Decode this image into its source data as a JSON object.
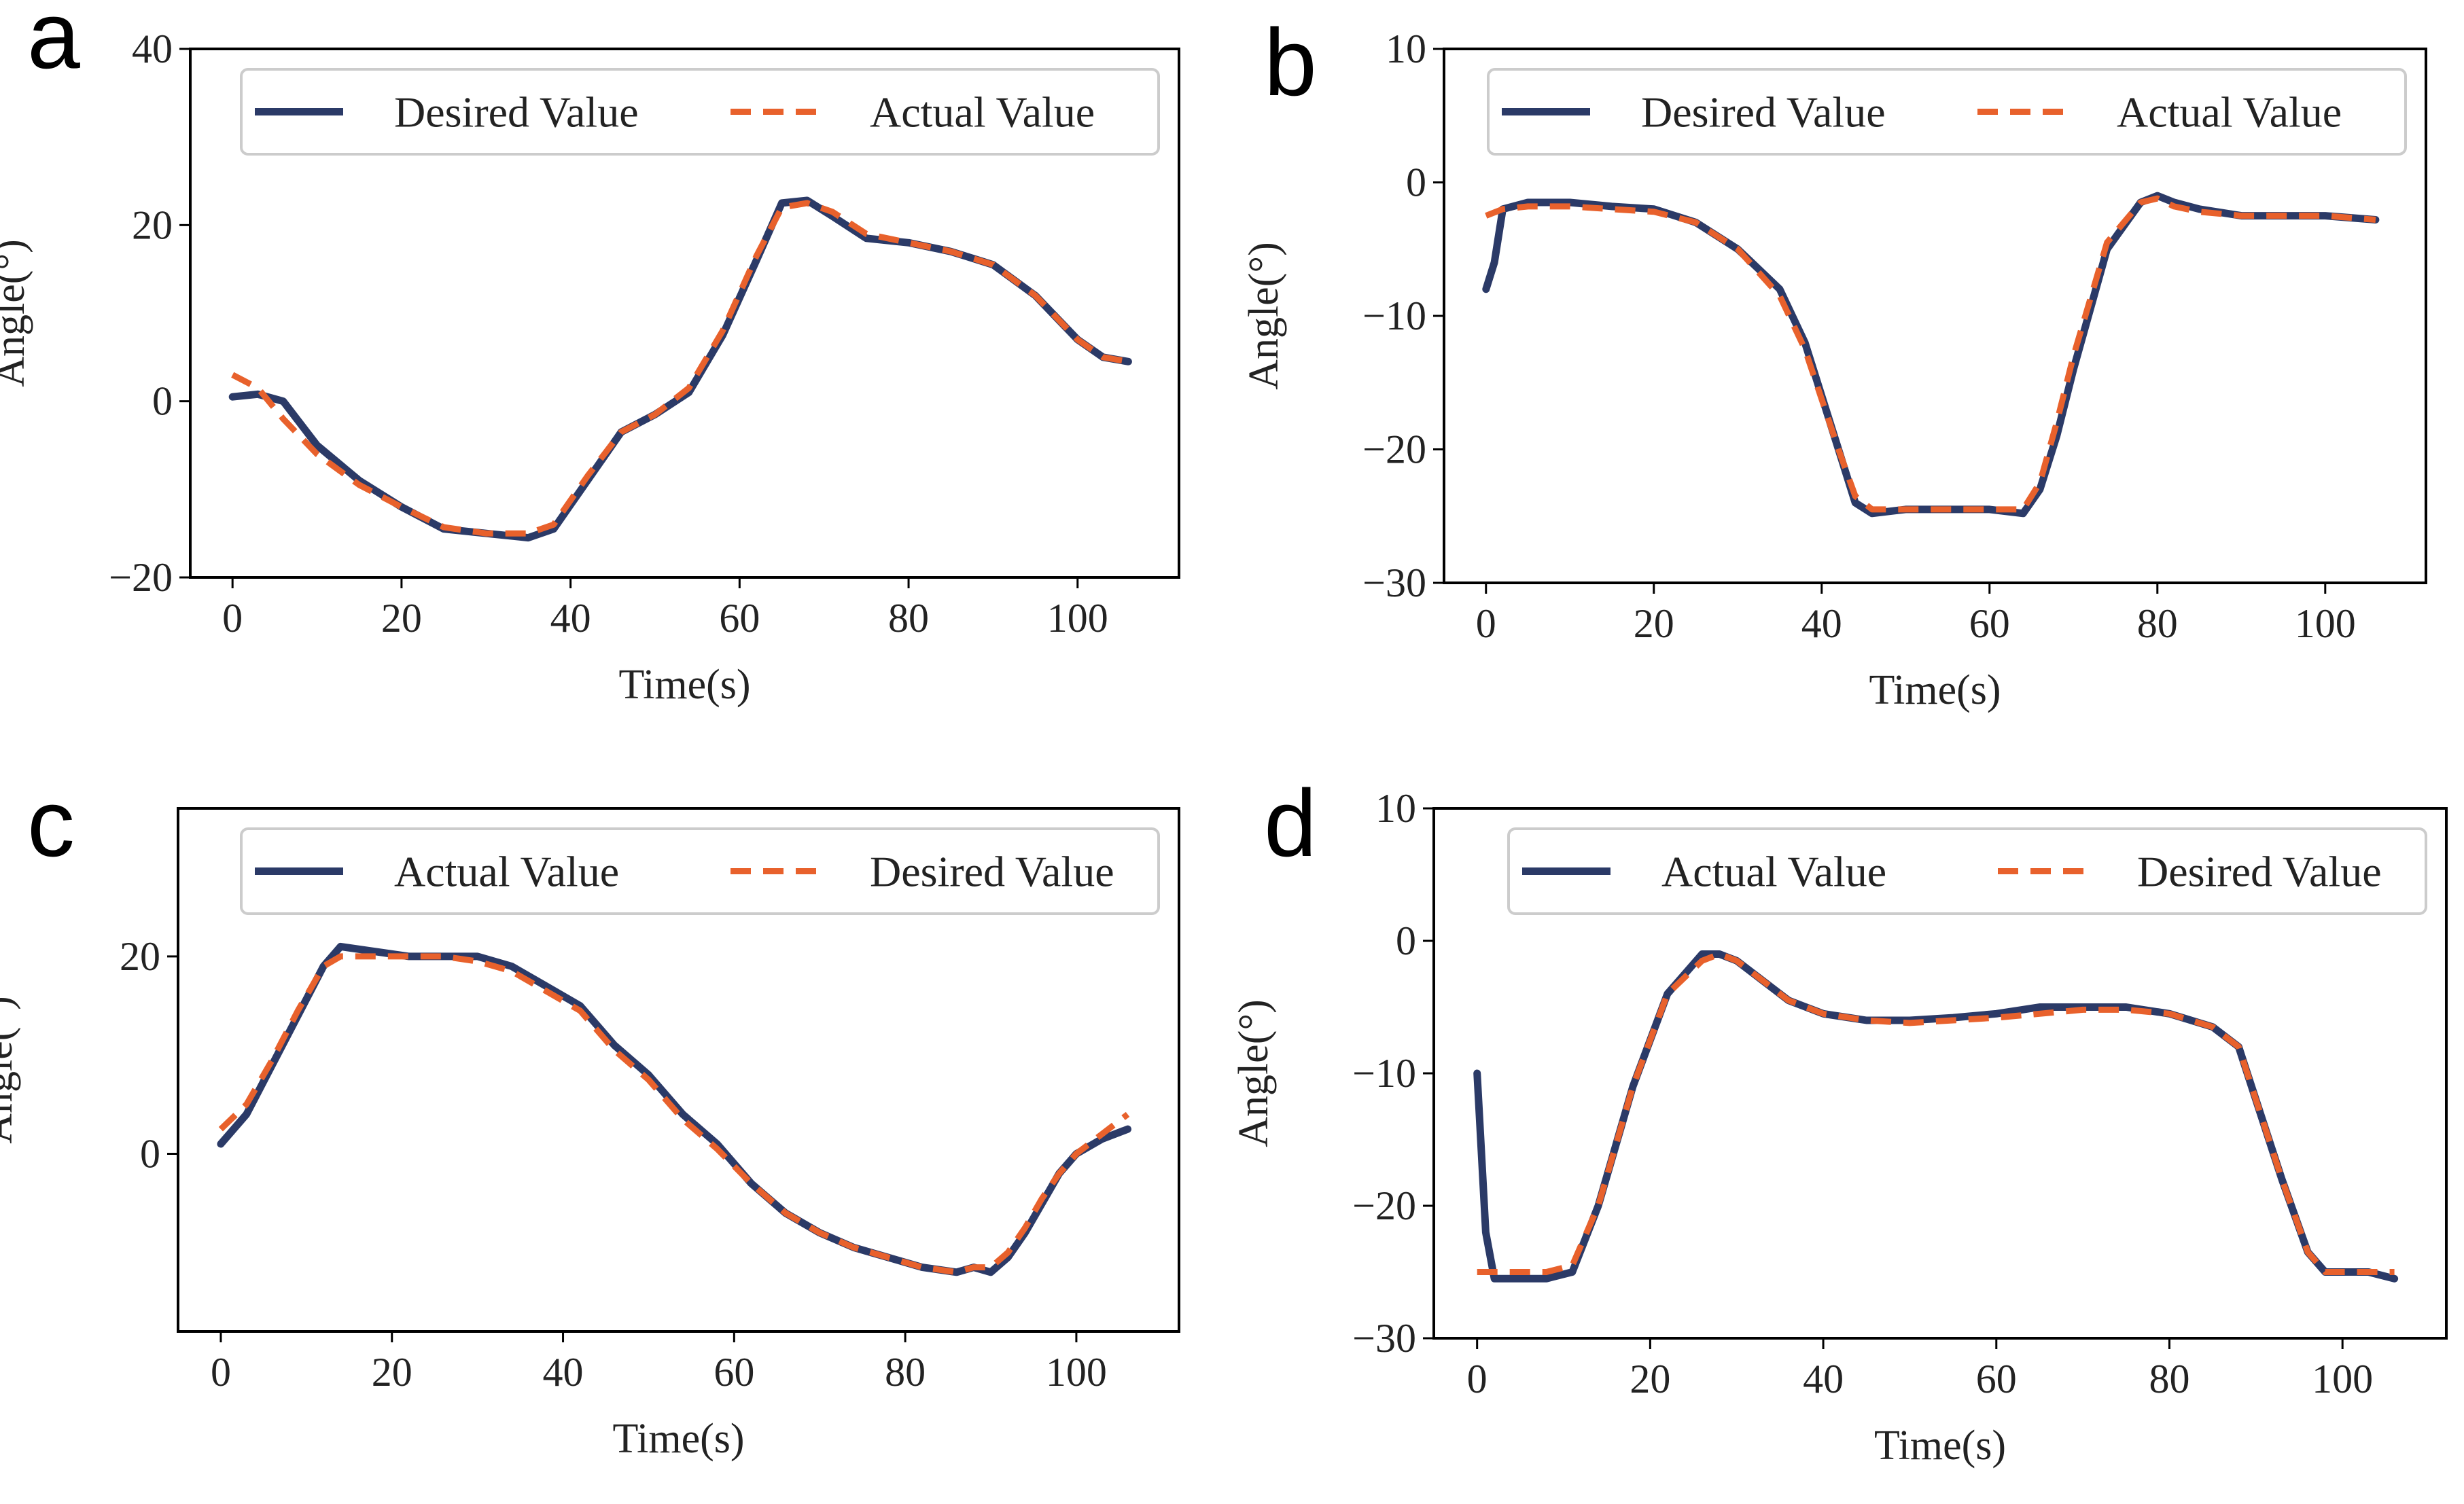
{
  "colors": {
    "navy": "#2b3a67",
    "orange": "#e8612c"
  },
  "chart_data": [
    {
      "panel": "a",
      "type": "line",
      "xlabel": "Time(s)",
      "ylabel": "Angle(°)",
      "xlim": [
        -5,
        112
      ],
      "ylim": [
        -20,
        40
      ],
      "xticks": [
        0,
        20,
        40,
        60,
        80,
        100
      ],
      "yticks": [
        -20,
        0,
        20,
        40
      ],
      "legend": [
        "Desired Value",
        "Actual Value"
      ],
      "legend_position": "top-right",
      "series": [
        {
          "name": "Desired Value",
          "style": "solid",
          "color": "#2b3a67",
          "x": [
            0,
            3,
            6,
            10,
            15,
            20,
            25,
            30,
            35,
            38,
            42,
            46,
            50,
            54,
            58,
            62,
            65,
            68,
            71,
            75,
            80,
            85,
            90,
            95,
            100,
            103,
            106
          ],
          "y": [
            0.5,
            0.8,
            0,
            -5,
            -9,
            -12,
            -14.5,
            -15,
            -15.5,
            -14.5,
            -9,
            -3.5,
            -1.5,
            1,
            7.5,
            16,
            22.5,
            22.8,
            21,
            18.5,
            18,
            17,
            15.5,
            12,
            7,
            5,
            4.5
          ]
        },
        {
          "name": "Actual Value",
          "style": "dashed",
          "color": "#e8612c",
          "x": [
            0,
            3,
            6,
            10,
            15,
            20,
            25,
            30,
            35,
            38,
            42,
            46,
            50,
            54,
            58,
            62,
            65,
            68,
            71,
            75,
            80,
            85,
            90,
            95,
            100,
            103,
            106
          ],
          "y": [
            3,
            1.5,
            -2,
            -6,
            -9.5,
            -12,
            -14.3,
            -15,
            -15,
            -14,
            -8.5,
            -3.5,
            -1.5,
            1.5,
            8,
            16.5,
            22,
            22.5,
            21.5,
            19,
            18,
            17,
            15.5,
            12,
            7,
            5,
            4.5
          ]
        }
      ]
    },
    {
      "panel": "b",
      "type": "line",
      "xlabel": "Time(s)",
      "ylabel": "Angle(°)",
      "xlim": [
        -5,
        112
      ],
      "ylim": [
        -30,
        10
      ],
      "xticks": [
        0,
        20,
        40,
        60,
        80,
        100
      ],
      "yticks": [
        -30,
        -20,
        -10,
        0,
        10
      ],
      "legend": [
        "Desired Value",
        "Actual Value"
      ],
      "legend_position": "top-right",
      "series": [
        {
          "name": "Desired Value",
          "style": "solid",
          "color": "#2b3a67",
          "x": [
            0,
            1,
            2,
            5,
            10,
            15,
            20,
            25,
            30,
            35,
            38,
            42,
            44,
            46,
            50,
            55,
            60,
            64,
            66,
            68,
            70,
            74,
            78,
            80,
            82,
            85,
            90,
            95,
            100,
            106
          ],
          "y": [
            -8,
            -6,
            -2,
            -1.5,
            -1.5,
            -1.8,
            -2,
            -3,
            -5,
            -8,
            -12,
            -20,
            -24,
            -24.8,
            -24.5,
            -24.5,
            -24.5,
            -24.8,
            -23,
            -19,
            -14,
            -5,
            -1.5,
            -1,
            -1.5,
            -2,
            -2.5,
            -2.5,
            -2.5,
            -2.8
          ]
        },
        {
          "name": "Actual Value",
          "style": "dashed",
          "color": "#e8612c",
          "x": [
            0,
            2,
            5,
            10,
            15,
            20,
            25,
            30,
            35,
            38,
            42,
            44,
            46,
            50,
            55,
            60,
            64,
            66,
            68,
            70,
            74,
            78,
            80,
            82,
            85,
            90,
            95,
            100,
            106
          ],
          "y": [
            -2.5,
            -2,
            -1.8,
            -1.8,
            -2,
            -2.2,
            -3,
            -5,
            -8.5,
            -12.5,
            -20,
            -23.5,
            -24.5,
            -24.5,
            -24.5,
            -24.5,
            -24.5,
            -22.5,
            -18,
            -13,
            -4.5,
            -1.5,
            -1.2,
            -1.8,
            -2.2,
            -2.5,
            -2.5,
            -2.5,
            -2.8
          ]
        }
      ]
    },
    {
      "panel": "c",
      "type": "line",
      "xlabel": "Time(s)",
      "ylabel": "Angle(°)",
      "xlim": [
        -5,
        112
      ],
      "ylim": [
        -18,
        35
      ],
      "xticks": [
        0,
        20,
        40,
        60,
        80,
        100
      ],
      "yticks": [
        0,
        20
      ],
      "legend": [
        "Actual Value",
        "Desired Value"
      ],
      "legend_position": "top-right",
      "series": [
        {
          "name": "Actual Value",
          "style": "solid",
          "color": "#2b3a67",
          "x": [
            0,
            3,
            6,
            9,
            12,
            14,
            18,
            22,
            26,
            30,
            34,
            38,
            42,
            46,
            50,
            54,
            58,
            62,
            66,
            70,
            74,
            78,
            82,
            86,
            88,
            90,
            92,
            94,
            96,
            98,
            100,
            103,
            106
          ],
          "y": [
            1,
            4,
            9,
            14,
            19,
            21,
            20.5,
            20,
            20,
            20,
            19,
            17,
            15,
            11,
            8,
            4,
            1,
            -3,
            -6,
            -8,
            -9.5,
            -10.5,
            -11.5,
            -12,
            -11.5,
            -12,
            -10.5,
            -8,
            -5,
            -2,
            0,
            1.5,
            2.5
          ]
        },
        {
          "name": "Desired Value",
          "style": "dashed",
          "color": "#e8612c",
          "x": [
            0,
            3,
            6,
            9,
            12,
            14,
            18,
            22,
            26,
            30,
            34,
            38,
            42,
            46,
            50,
            54,
            58,
            62,
            66,
            70,
            74,
            78,
            82,
            86,
            88,
            90,
            92,
            94,
            96,
            98,
            100,
            103,
            106
          ],
          "y": [
            2.5,
            5,
            9.5,
            14.5,
            19,
            20,
            20,
            20,
            20,
            19.5,
            18.5,
            16.5,
            14.5,
            10.5,
            7.5,
            3.5,
            0.5,
            -3,
            -6,
            -8,
            -9.5,
            -10.5,
            -11.5,
            -12,
            -11.5,
            -11.5,
            -10,
            -7.5,
            -4.5,
            -2,
            0,
            2,
            4
          ]
        }
      ]
    },
    {
      "panel": "d",
      "type": "line",
      "xlabel": "Time(s)",
      "ylabel": "Angle(°)",
      "xlim": [
        -5,
        112
      ],
      "ylim": [
        -30,
        10
      ],
      "xticks": [
        0,
        20,
        40,
        60,
        80,
        100
      ],
      "yticks": [
        -30,
        -20,
        -10,
        0,
        10
      ],
      "legend": [
        "Actual Value",
        "Desired Value"
      ],
      "legend_position": "top-right",
      "series": [
        {
          "name": "Actual Value",
          "style": "solid",
          "color": "#2b3a67",
          "x": [
            0,
            1,
            2,
            5,
            8,
            11,
            14,
            18,
            22,
            26,
            28,
            30,
            33,
            36,
            40,
            45,
            50,
            55,
            60,
            65,
            70,
            75,
            80,
            85,
            88,
            90,
            93,
            96,
            98,
            100,
            103,
            106
          ],
          "y": [
            -10,
            -22,
            -25.5,
            -25.5,
            -25.5,
            -25,
            -20,
            -11,
            -4,
            -1,
            -1,
            -1.5,
            -3,
            -4.5,
            -5.5,
            -6,
            -6,
            -5.8,
            -5.5,
            -5,
            -5,
            -5,
            -5.5,
            -6.5,
            -8,
            -12,
            -18,
            -23.5,
            -25,
            -25,
            -25,
            -25.5
          ]
        },
        {
          "name": "Desired Value",
          "style": "dashed",
          "color": "#e8612c",
          "x": [
            0,
            2,
            5,
            8,
            11,
            14,
            18,
            22,
            26,
            28,
            30,
            33,
            36,
            40,
            45,
            50,
            55,
            60,
            65,
            70,
            75,
            80,
            85,
            88,
            90,
            93,
            96,
            98,
            100,
            103,
            106
          ],
          "y": [
            -25,
            -25,
            -25,
            -25,
            -24.5,
            -20,
            -11,
            -4,
            -1.5,
            -1,
            -1.5,
            -3,
            -4.5,
            -5.5,
            -6,
            -6.2,
            -6,
            -5.8,
            -5.5,
            -5.2,
            -5.2,
            -5.5,
            -6.5,
            -8,
            -12,
            -18,
            -23.5,
            -25,
            -25,
            -25,
            -25
          ]
        }
      ]
    }
  ]
}
